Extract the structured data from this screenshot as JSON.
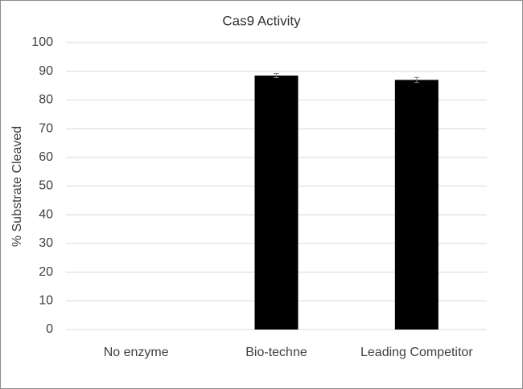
{
  "chart_data": {
    "type": "bar",
    "title": "Cas9 Activity",
    "y_label": "% Substrate Cleaved",
    "categories": [
      "No enzyme",
      "Bio-techne",
      "Leading Competitor"
    ],
    "values": [
      0,
      88.5,
      87
    ],
    "errors": [
      0,
      0.7,
      0.9
    ],
    "color": "#000000",
    "ylim": [
      0,
      100
    ],
    "yticks": [
      0,
      10,
      20,
      30,
      40,
      50,
      60,
      70,
      80,
      90,
      100
    ],
    "grid": true
  }
}
